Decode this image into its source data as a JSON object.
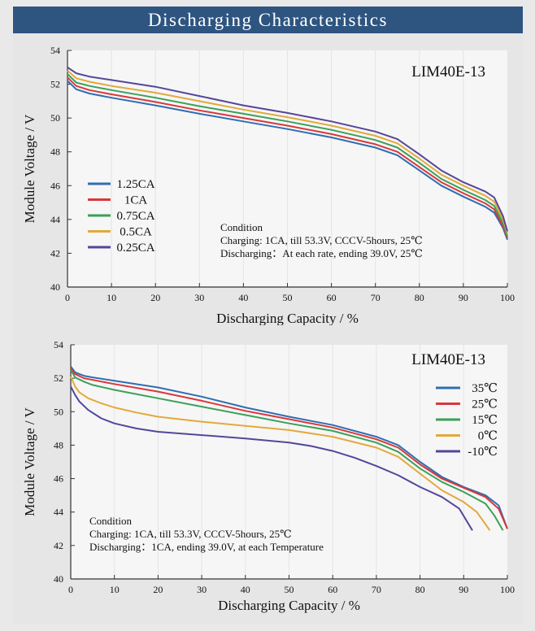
{
  "banner": {
    "title": "Discharging Characteristics",
    "color": "#2e5580"
  },
  "chart_data": [
    {
      "type": "line",
      "model_label": "LIM40E-13",
      "xlabel": "Discharging Capacity / %",
      "ylabel": "Module Voltage / V",
      "xlim": [
        0,
        100
      ],
      "ylim": [
        40,
        54
      ],
      "xticks": [
        0,
        10,
        20,
        30,
        40,
        50,
        60,
        70,
        80,
        90,
        100
      ],
      "yticks": [
        40,
        42,
        44,
        46,
        48,
        50,
        52,
        54
      ],
      "legend_position": "left-middle",
      "condition": [
        "Condition",
        "Charging: 1CA, till 53.3V,  CCCV-5hours,  25℃",
        "Discharging：At each rate, ending 39.0V,  25℃"
      ],
      "series": [
        {
          "name": "1.25CA",
          "color": "#2f6db3",
          "points": [
            [
              0,
              52.2
            ],
            [
              2,
              51.7
            ],
            [
              5,
              51.45
            ],
            [
              10,
              51.2
            ],
            [
              20,
              50.75
            ],
            [
              30,
              50.25
            ],
            [
              40,
              49.8
            ],
            [
              50,
              49.35
            ],
            [
              60,
              48.85
            ],
            [
              70,
              48.25
            ],
            [
              75,
              47.8
            ],
            [
              80,
              46.9
            ],
            [
              85,
              46.0
            ],
            [
              90,
              45.35
            ],
            [
              95,
              44.75
            ],
            [
              97,
              44.4
            ],
            [
              99,
              43.5
            ],
            [
              100,
              42.8
            ]
          ]
        },
        {
          "name": "1CA",
          "color": "#d8383a",
          "points": [
            [
              0,
              52.4
            ],
            [
              2,
              51.9
            ],
            [
              5,
              51.65
            ],
            [
              10,
              51.4
            ],
            [
              20,
              50.95
            ],
            [
              30,
              50.45
            ],
            [
              40,
              50.0
            ],
            [
              50,
              49.55
            ],
            [
              60,
              49.05
            ],
            [
              70,
              48.45
            ],
            [
              75,
              48.0
            ],
            [
              80,
              47.1
            ],
            [
              85,
              46.2
            ],
            [
              90,
              45.55
            ],
            [
              95,
              44.95
            ],
            [
              97,
              44.6
            ],
            [
              99,
              43.6
            ],
            [
              100,
              42.9
            ]
          ]
        },
        {
          "name": "0.75CA",
          "color": "#3aa05a",
          "points": [
            [
              0,
              52.6
            ],
            [
              2,
              52.1
            ],
            [
              5,
              51.9
            ],
            [
              10,
              51.65
            ],
            [
              20,
              51.2
            ],
            [
              30,
              50.7
            ],
            [
              40,
              50.25
            ],
            [
              50,
              49.8
            ],
            [
              60,
              49.3
            ],
            [
              70,
              48.7
            ],
            [
              75,
              48.25
            ],
            [
              80,
              47.35
            ],
            [
              85,
              46.4
            ],
            [
              90,
              45.75
            ],
            [
              95,
              45.15
            ],
            [
              97,
              44.8
            ],
            [
              99,
              43.8
            ],
            [
              100,
              43.0
            ]
          ]
        },
        {
          "name": "0.5CA",
          "color": "#e3a93b",
          "points": [
            [
              0,
              52.8
            ],
            [
              2,
              52.35
            ],
            [
              5,
              52.15
            ],
            [
              10,
              51.9
            ],
            [
              20,
              51.5
            ],
            [
              30,
              51.0
            ],
            [
              40,
              50.5
            ],
            [
              50,
              50.05
            ],
            [
              60,
              49.55
            ],
            [
              70,
              48.95
            ],
            [
              75,
              48.5
            ],
            [
              80,
              47.6
            ],
            [
              85,
              46.65
            ],
            [
              90,
              46.0
            ],
            [
              95,
              45.4
            ],
            [
              97,
              45.05
            ],
            [
              99,
              44.0
            ],
            [
              100,
              43.2
            ]
          ]
        },
        {
          "name": "0.25CA",
          "color": "#55469a",
          "points": [
            [
              0,
              53.0
            ],
            [
              2,
              52.65
            ],
            [
              5,
              52.45
            ],
            [
              10,
              52.25
            ],
            [
              20,
              51.85
            ],
            [
              30,
              51.3
            ],
            [
              40,
              50.75
            ],
            [
              50,
              50.3
            ],
            [
              60,
              49.8
            ],
            [
              70,
              49.2
            ],
            [
              75,
              48.75
            ],
            [
              80,
              47.85
            ],
            [
              85,
              46.9
            ],
            [
              90,
              46.2
            ],
            [
              95,
              45.65
            ],
            [
              97,
              45.3
            ],
            [
              99,
              44.2
            ],
            [
              100,
              43.3
            ]
          ]
        }
      ]
    },
    {
      "type": "line",
      "model_label": "LIM40E-13",
      "xlabel": "Discharging  Capacity / %",
      "ylabel": "Module Voltage / V",
      "xlim": [
        0,
        100
      ],
      "ylim": [
        40,
        54
      ],
      "xticks": [
        0,
        10,
        20,
        30,
        40,
        50,
        60,
        70,
        80,
        90,
        100
      ],
      "yticks": [
        40,
        42,
        44,
        46,
        48,
        50,
        52,
        54
      ],
      "legend_position": "top-right",
      "condition": [
        "Condition",
        "Charging: 1CA, till 53.3V,  CCCV-5hours,  25℃",
        "Discharging：1CA, ending 39.0V,  at each Temperature"
      ],
      "series": [
        {
          "name": "35℃",
          "color": "#2f6db3",
          "points": [
            [
              0,
              52.7
            ],
            [
              1,
              52.35
            ],
            [
              3,
              52.15
            ],
            [
              5,
              52.05
            ],
            [
              10,
              51.85
            ],
            [
              20,
              51.45
            ],
            [
              30,
              50.9
            ],
            [
              40,
              50.25
            ],
            [
              50,
              49.7
            ],
            [
              60,
              49.2
            ],
            [
              70,
              48.5
            ],
            [
              75,
              48.0
            ],
            [
              80,
              47.0
            ],
            [
              85,
              46.1
            ],
            [
              90,
              45.5
            ],
            [
              95,
              45.0
            ],
            [
              98,
              44.4
            ],
            [
              100,
              43.0
            ]
          ]
        },
        {
          "name": "25℃",
          "color": "#d8383a",
          "points": [
            [
              0,
              52.6
            ],
            [
              1,
              52.25
            ],
            [
              3,
              52.0
            ],
            [
              5,
              51.9
            ],
            [
              10,
              51.65
            ],
            [
              20,
              51.2
            ],
            [
              30,
              50.65
            ],
            [
              40,
              50.05
            ],
            [
              50,
              49.55
            ],
            [
              60,
              49.05
            ],
            [
              70,
              48.35
            ],
            [
              75,
              47.85
            ],
            [
              80,
              46.85
            ],
            [
              85,
              46.0
            ],
            [
              90,
              45.45
            ],
            [
              95,
              44.9
            ],
            [
              98,
              44.2
            ],
            [
              100,
              43.0
            ]
          ]
        },
        {
          "name": "15℃",
          "color": "#3aa05a",
          "points": [
            [
              0,
              52.5
            ],
            [
              1,
              52.05
            ],
            [
              3,
              51.8
            ],
            [
              5,
              51.6
            ],
            [
              10,
              51.3
            ],
            [
              20,
              50.8
            ],
            [
              30,
              50.3
            ],
            [
              40,
              49.8
            ],
            [
              50,
              49.3
            ],
            [
              60,
              48.85
            ],
            [
              70,
              48.15
            ],
            [
              75,
              47.6
            ],
            [
              80,
              46.6
            ],
            [
              85,
              45.8
            ],
            [
              90,
              45.2
            ],
            [
              95,
              44.5
            ],
            [
              97,
              43.8
            ],
            [
              99,
              42.9
            ]
          ]
        },
        {
          "name": "0℃",
          "color": "#e3a93b",
          "points": [
            [
              0,
              52.1
            ],
            [
              1,
              51.5
            ],
            [
              2,
              51.15
            ],
            [
              4,
              50.8
            ],
            [
              7,
              50.5
            ],
            [
              10,
              50.25
            ],
            [
              15,
              49.95
            ],
            [
              20,
              49.7
            ],
            [
              30,
              49.4
            ],
            [
              40,
              49.15
            ],
            [
              50,
              48.9
            ],
            [
              60,
              48.5
            ],
            [
              70,
              47.85
            ],
            [
              75,
              47.3
            ],
            [
              80,
              46.3
            ],
            [
              85,
              45.3
            ],
            [
              90,
              44.6
            ],
            [
              93,
              44.0
            ],
            [
              96,
              42.9
            ]
          ]
        },
        {
          "name": "-10℃",
          "color": "#55469a",
          "points": [
            [
              0,
              51.5
            ],
            [
              1,
              51.0
            ],
            [
              2,
              50.6
            ],
            [
              4,
              50.1
            ],
            [
              7,
              49.6
            ],
            [
              10,
              49.3
            ],
            [
              15,
              49.0
            ],
            [
              20,
              48.8
            ],
            [
              30,
              48.6
            ],
            [
              40,
              48.4
            ],
            [
              50,
              48.15
            ],
            [
              55,
              47.95
            ],
            [
              60,
              47.65
            ],
            [
              65,
              47.25
            ],
            [
              70,
              46.75
            ],
            [
              75,
              46.2
            ],
            [
              80,
              45.5
            ],
            [
              85,
              44.9
            ],
            [
              89,
              44.2
            ],
            [
              92,
              42.9
            ]
          ]
        }
      ]
    }
  ]
}
